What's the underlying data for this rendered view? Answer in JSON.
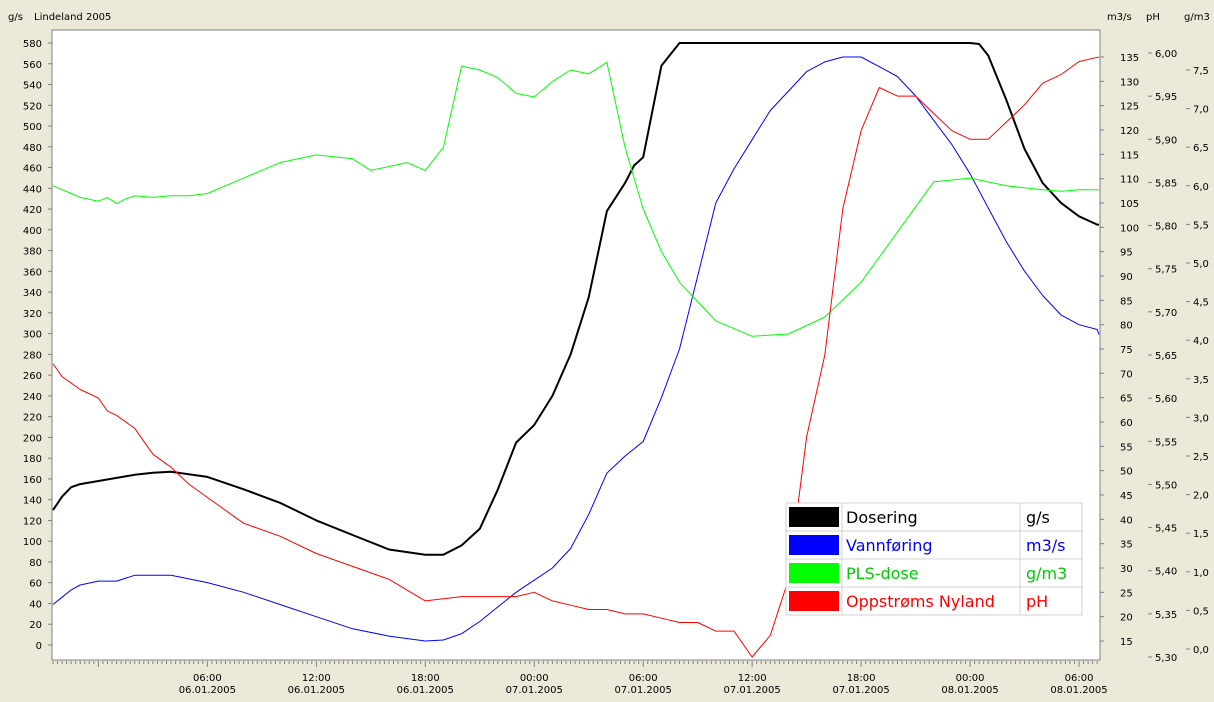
{
  "chart_data": {
    "type": "line",
    "title": "Lindeland 2005",
    "axes": {
      "left": {
        "unit": "g/s",
        "min": 0,
        "max": 580,
        "step": 20
      },
      "right1": {
        "unit": "m3/s",
        "min": 15,
        "max": 135,
        "step": 5
      },
      "right2": {
        "unit": "pH",
        "min": 5.3,
        "max": 6.0,
        "step": 0.05
      },
      "right3": {
        "unit": "g/m3",
        "min": 0.0,
        "max": 7.5,
        "step": 0.5
      }
    },
    "x_ticks": [
      {
        "h": 6,
        "time": "06:00",
        "date": "06.01.2005"
      },
      {
        "h": 12,
        "time": "12:00",
        "date": "06.01.2005"
      },
      {
        "h": 18,
        "time": "18:00",
        "date": "06.01.2005"
      },
      {
        "h": 24,
        "time": "00:00",
        "date": "07.01.2005"
      },
      {
        "h": 30,
        "time": "06:00",
        "date": "07.01.2005"
      },
      {
        "h": 36,
        "time": "12:00",
        "date": "07.01.2005"
      },
      {
        "h": 42,
        "time": "18:00",
        "date": "07.01.2005"
      },
      {
        "h": 48,
        "time": "00:00",
        "date": "08.01.2005"
      },
      {
        "h": 54,
        "time": "06:00",
        "date": "08.01.2005"
      }
    ],
    "x_range_hours": [
      -2.5,
      55.1
    ],
    "x_origin": "00:00 06.01.2005",
    "series": [
      {
        "name": "Dosering",
        "unit": "g/s",
        "axis": "left",
        "color": "#000000",
        "width": 2,
        "x": [
          -2.5,
          -2,
          -1.5,
          -1,
          0,
          1,
          2,
          3,
          4,
          6,
          8,
          10,
          12,
          14,
          16,
          18,
          19,
          20,
          21,
          22,
          23,
          24,
          25,
          26,
          27,
          28,
          29,
          29.5,
          30,
          31,
          32,
          32.5,
          33,
          34,
          35,
          36,
          38,
          40,
          42,
          44,
          46,
          48,
          48.5,
          49,
          50,
          51,
          52,
          53,
          54,
          55,
          55.1
        ],
        "y": [
          130,
          143,
          152,
          155,
          158,
          161,
          164,
          166,
          167,
          162,
          150,
          137,
          120,
          106,
          92,
          87,
          87,
          96,
          112,
          150,
          195,
          212,
          240,
          280,
          335,
          418,
          445,
          462,
          470,
          558,
          580,
          580,
          580,
          580,
          580,
          580,
          580,
          580,
          580,
          580,
          580,
          580,
          579,
          568,
          525,
          478,
          445,
          426,
          413,
          405,
          405
        ]
      },
      {
        "name": "Vannføring",
        "unit": "m3/s",
        "axis": "right1",
        "color": "#0000ff",
        "width": 1,
        "x": [
          -2.5,
          -2,
          -1.5,
          -1,
          0,
          0.5,
          1,
          2,
          3,
          4,
          6,
          8,
          10,
          12,
          14,
          16,
          18,
          19,
          20,
          21,
          22,
          23,
          24,
          25,
          26,
          27,
          28,
          29,
          30,
          31,
          32,
          33,
          34,
          35,
          36,
          37,
          38,
          39,
          40,
          41,
          42,
          43,
          44,
          45,
          46,
          47,
          48,
          49,
          50,
          51,
          52,
          53,
          54,
          55,
          55.1
        ],
        "y": [
          22.5,
          24,
          25.5,
          26.5,
          27.3,
          27.3,
          27.3,
          28.5,
          28.5,
          28.5,
          27,
          25,
          22.5,
          20,
          17.5,
          16,
          15,
          15.2,
          16.5,
          19,
          22,
          25,
          27.5,
          30,
          34,
          41,
          49.5,
          53,
          56,
          65,
          75,
          90,
          105,
          112,
          118,
          124,
          128,
          132,
          134,
          135,
          135,
          133,
          131,
          127,
          122,
          117,
          111,
          104,
          97,
          91,
          86,
          82,
          80,
          79,
          78
        ]
      },
      {
        "name": "PLS-dose",
        "unit": "g/m3",
        "axis": "right3",
        "color": "#00ff00",
        "width": 1,
        "x": [
          -2.5,
          -2,
          -1.5,
          -1,
          0,
          0.5,
          1,
          1.5,
          2,
          3,
          4,
          5,
          6,
          7,
          8,
          9,
          10,
          11,
          12,
          14,
          15,
          17,
          18,
          19,
          20,
          21,
          22,
          23,
          24,
          25,
          26,
          27,
          28,
          29,
          30,
          31,
          32,
          33,
          34,
          35,
          36,
          38,
          40,
          42,
          44,
          46,
          48,
          49,
          50,
          52,
          53,
          54,
          54.5,
          55.1
        ],
        "y": [
          6.0,
          5.95,
          5.9,
          5.85,
          5.8,
          5.85,
          5.77,
          5.83,
          5.87,
          5.85,
          5.87,
          5.87,
          5.9,
          6.0,
          6.1,
          6.2,
          6.3,
          6.35,
          6.4,
          6.35,
          6.2,
          6.3,
          6.2,
          6.5,
          7.55,
          7.5,
          7.4,
          7.2,
          7.15,
          7.35,
          7.5,
          7.45,
          7.6,
          6.5,
          5.7,
          5.15,
          4.75,
          4.5,
          4.25,
          4.15,
          4.05,
          4.08,
          4.3,
          4.75,
          5.4,
          6.05,
          6.1,
          6.05,
          6.0,
          5.95,
          5.93,
          5.95,
          5.95,
          5.95
        ]
      },
      {
        "name": "Oppstrøms Nyland",
        "unit": "pH",
        "axis": "right2",
        "color": "#ff0000",
        "width": 1,
        "x": [
          -2.5,
          -2,
          -1,
          0,
          0.5,
          1,
          2,
          3,
          4,
          5,
          6,
          8,
          10,
          12,
          14,
          16,
          18,
          20,
          21,
          22,
          23,
          24,
          25,
          26,
          27,
          28,
          29,
          30,
          31,
          32,
          33,
          34,
          35,
          36,
          37,
          38,
          39,
          40,
          41,
          42,
          43,
          44,
          45,
          46,
          47,
          48,
          49,
          50,
          51,
          52,
          53,
          54,
          55,
          55.1
        ],
        "y": [
          5.64,
          5.625,
          5.61,
          5.6,
          5.585,
          5.58,
          5.565,
          5.535,
          5.52,
          5.5,
          5.485,
          5.455,
          5.44,
          5.42,
          5.405,
          5.39,
          5.365,
          5.37,
          5.37,
          5.37,
          5.37,
          5.375,
          5.365,
          5.36,
          5.355,
          5.355,
          5.35,
          5.35,
          5.345,
          5.34,
          5.34,
          5.33,
          5.33,
          5.3,
          5.325,
          5.39,
          5.555,
          5.65,
          5.82,
          5.91,
          5.96,
          5.95,
          5.95,
          5.93,
          5.91,
          5.9,
          5.9,
          5.92,
          5.94,
          5.965,
          5.975,
          5.99,
          5.995,
          5.995
        ]
      }
    ],
    "legend": {
      "placement": "bottom-right",
      "entries": [
        {
          "name": "Dosering",
          "unit": "g/s",
          "color": "#000000",
          "text_color": "#000000"
        },
        {
          "name": "Vannføring",
          "unit": "m3/s",
          "color": "#0000ff",
          "text_color": "#0000ff"
        },
        {
          "name": "PLS-dose",
          "unit": "g/m3",
          "color": "#00ff00",
          "text_color": "#00cc00"
        },
        {
          "name": "Oppstrøms Nyland",
          "unit": "pH",
          "color": "#ff0000",
          "text_color": "#ff0000"
        }
      ]
    },
    "grid": false
  },
  "labels": {
    "right2_ticks": [
      "5,30",
      "5,35",
      "5,40",
      "5,45",
      "5,50",
      "5,55",
      "5,60",
      "5,65",
      "5,70",
      "5,75",
      "5,80",
      "5,85",
      "5,90",
      "5,95",
      "6,00"
    ],
    "right3_ticks": [
      "0,0",
      "0,5",
      "1,0",
      "1,5",
      "2,0",
      "2,5",
      "3,0",
      "3,5",
      "4,0",
      "4,5",
      "5,0",
      "5,5",
      "6,0",
      "6,5",
      "7,0",
      "7,5"
    ]
  }
}
